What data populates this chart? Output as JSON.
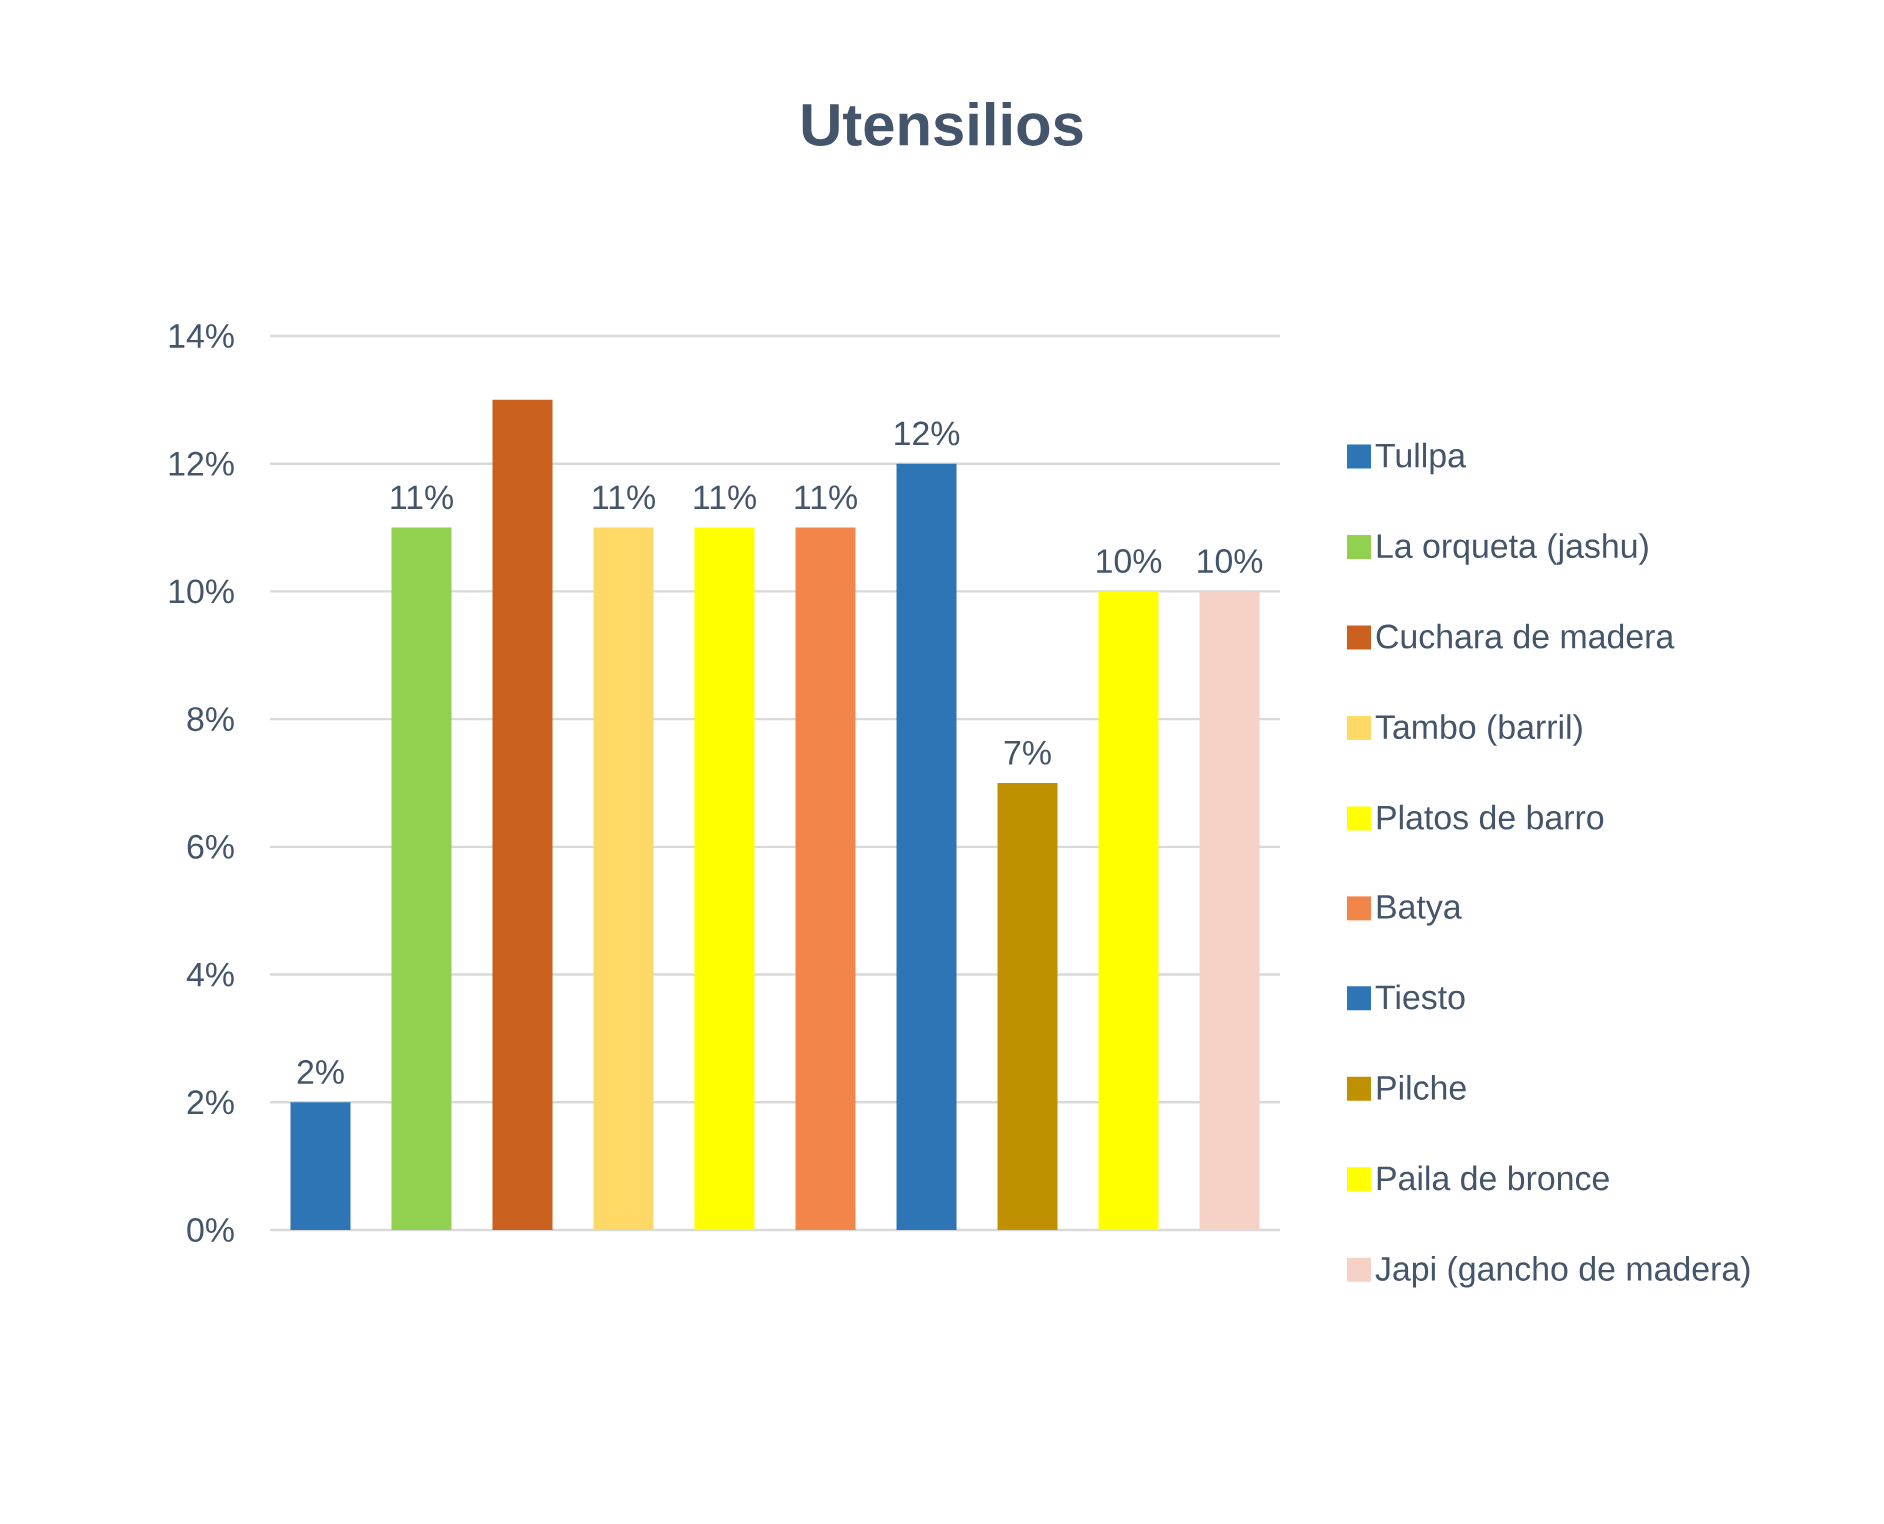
{
  "chart_data": {
    "type": "bar",
    "title": "Utensilios",
    "categories": [
      null,
      null,
      null,
      null,
      null,
      null,
      null,
      null,
      null,
      null
    ],
    "series": [
      {
        "name": "Tullpa",
        "color": "#2e75b6",
        "values": [
          2,
          null,
          null,
          null,
          null,
          null,
          null,
          null,
          null,
          null
        ],
        "value_labels": [
          "2%",
          null,
          null,
          null,
          null,
          null,
          null,
          null,
          null,
          null
        ]
      },
      {
        "name": "La orqueta (jashu)",
        "color": "#92d050",
        "values": [
          null,
          11,
          null,
          null,
          null,
          null,
          null,
          null,
          null,
          null
        ],
        "value_labels": [
          null,
          "11%",
          null,
          null,
          null,
          null,
          null,
          null,
          null,
          null
        ]
      },
      {
        "name": "Cuchara de madera",
        "color": "#c9601e",
        "values": [
          null,
          null,
          13,
          null,
          null,
          null,
          null,
          null,
          null,
          null
        ]
      },
      {
        "name": "Tambo (barril)",
        "color": "#ffd966",
        "values": [
          null,
          null,
          null,
          11,
          null,
          null,
          null,
          null,
          null,
          null
        ],
        "value_labels": [
          null,
          null,
          null,
          "11%",
          null,
          null,
          null,
          null,
          null,
          null
        ]
      },
      {
        "name": "Platos de barro",
        "color": "#ffff00",
        "values": [
          null,
          null,
          null,
          null,
          11,
          null,
          null,
          null,
          null,
          null
        ],
        "value_labels": [
          null,
          null,
          null,
          null,
          "11%",
          null,
          null,
          null,
          null,
          null
        ]
      },
      {
        "name": "Batya",
        "color": "#f2864a",
        "values": [
          null,
          null,
          null,
          null,
          null,
          11,
          null,
          null,
          null,
          null
        ],
        "value_labels": [
          null,
          null,
          null,
          null,
          null,
          "11%",
          null,
          null,
          null,
          null
        ]
      },
      {
        "name": "Tiesto",
        "color": "#2e75b6",
        "values": [
          null,
          null,
          null,
          null,
          null,
          null,
          12,
          null,
          null,
          null
        ],
        "value_labels": [
          null,
          null,
          null,
          null,
          null,
          null,
          "12%",
          null,
          null,
          null
        ]
      },
      {
        "name": "Pilche",
        "color": "#bf9000",
        "values": [
          null,
          null,
          null,
          null,
          null,
          null,
          null,
          7,
          null,
          null
        ],
        "value_labels": [
          null,
          null,
          null,
          null,
          null,
          null,
          null,
          "7%",
          null,
          null
        ]
      },
      {
        "name": "Paila de bronce",
        "color": "#ffff00",
        "values": [
          null,
          null,
          null,
          null,
          null,
          null,
          null,
          null,
          10,
          null
        ],
        "value_labels": [
          null,
          null,
          null,
          null,
          null,
          null,
          null,
          null,
          "10%",
          null
        ]
      },
      {
        "name": "Japi (gancho de madera)",
        "color": "#f6d2c6",
        "values": [
          null,
          null,
          null,
          null,
          null,
          null,
          null,
          null,
          null,
          10
        ],
        "value_labels": [
          null,
          null,
          null,
          null,
          null,
          null,
          null,
          null,
          null,
          "10%"
        ]
      }
    ],
    "ylim": [
      0,
      14
    ],
    "yticks": [
      {
        "value": 0,
        "label": "0%"
      },
      {
        "value": 2,
        "label": "2%"
      },
      {
        "value": 4,
        "label": "4%"
      },
      {
        "value": 6,
        "label": "6%"
      },
      {
        "value": 8,
        "label": "8%"
      },
      {
        "value": 10,
        "label": "10%"
      },
      {
        "value": 12,
        "label": "12%"
      },
      {
        "value": 14,
        "label": "14%"
      }
    ],
    "grid": "y",
    "legend": "right",
    "tick_labels": "y"
  }
}
